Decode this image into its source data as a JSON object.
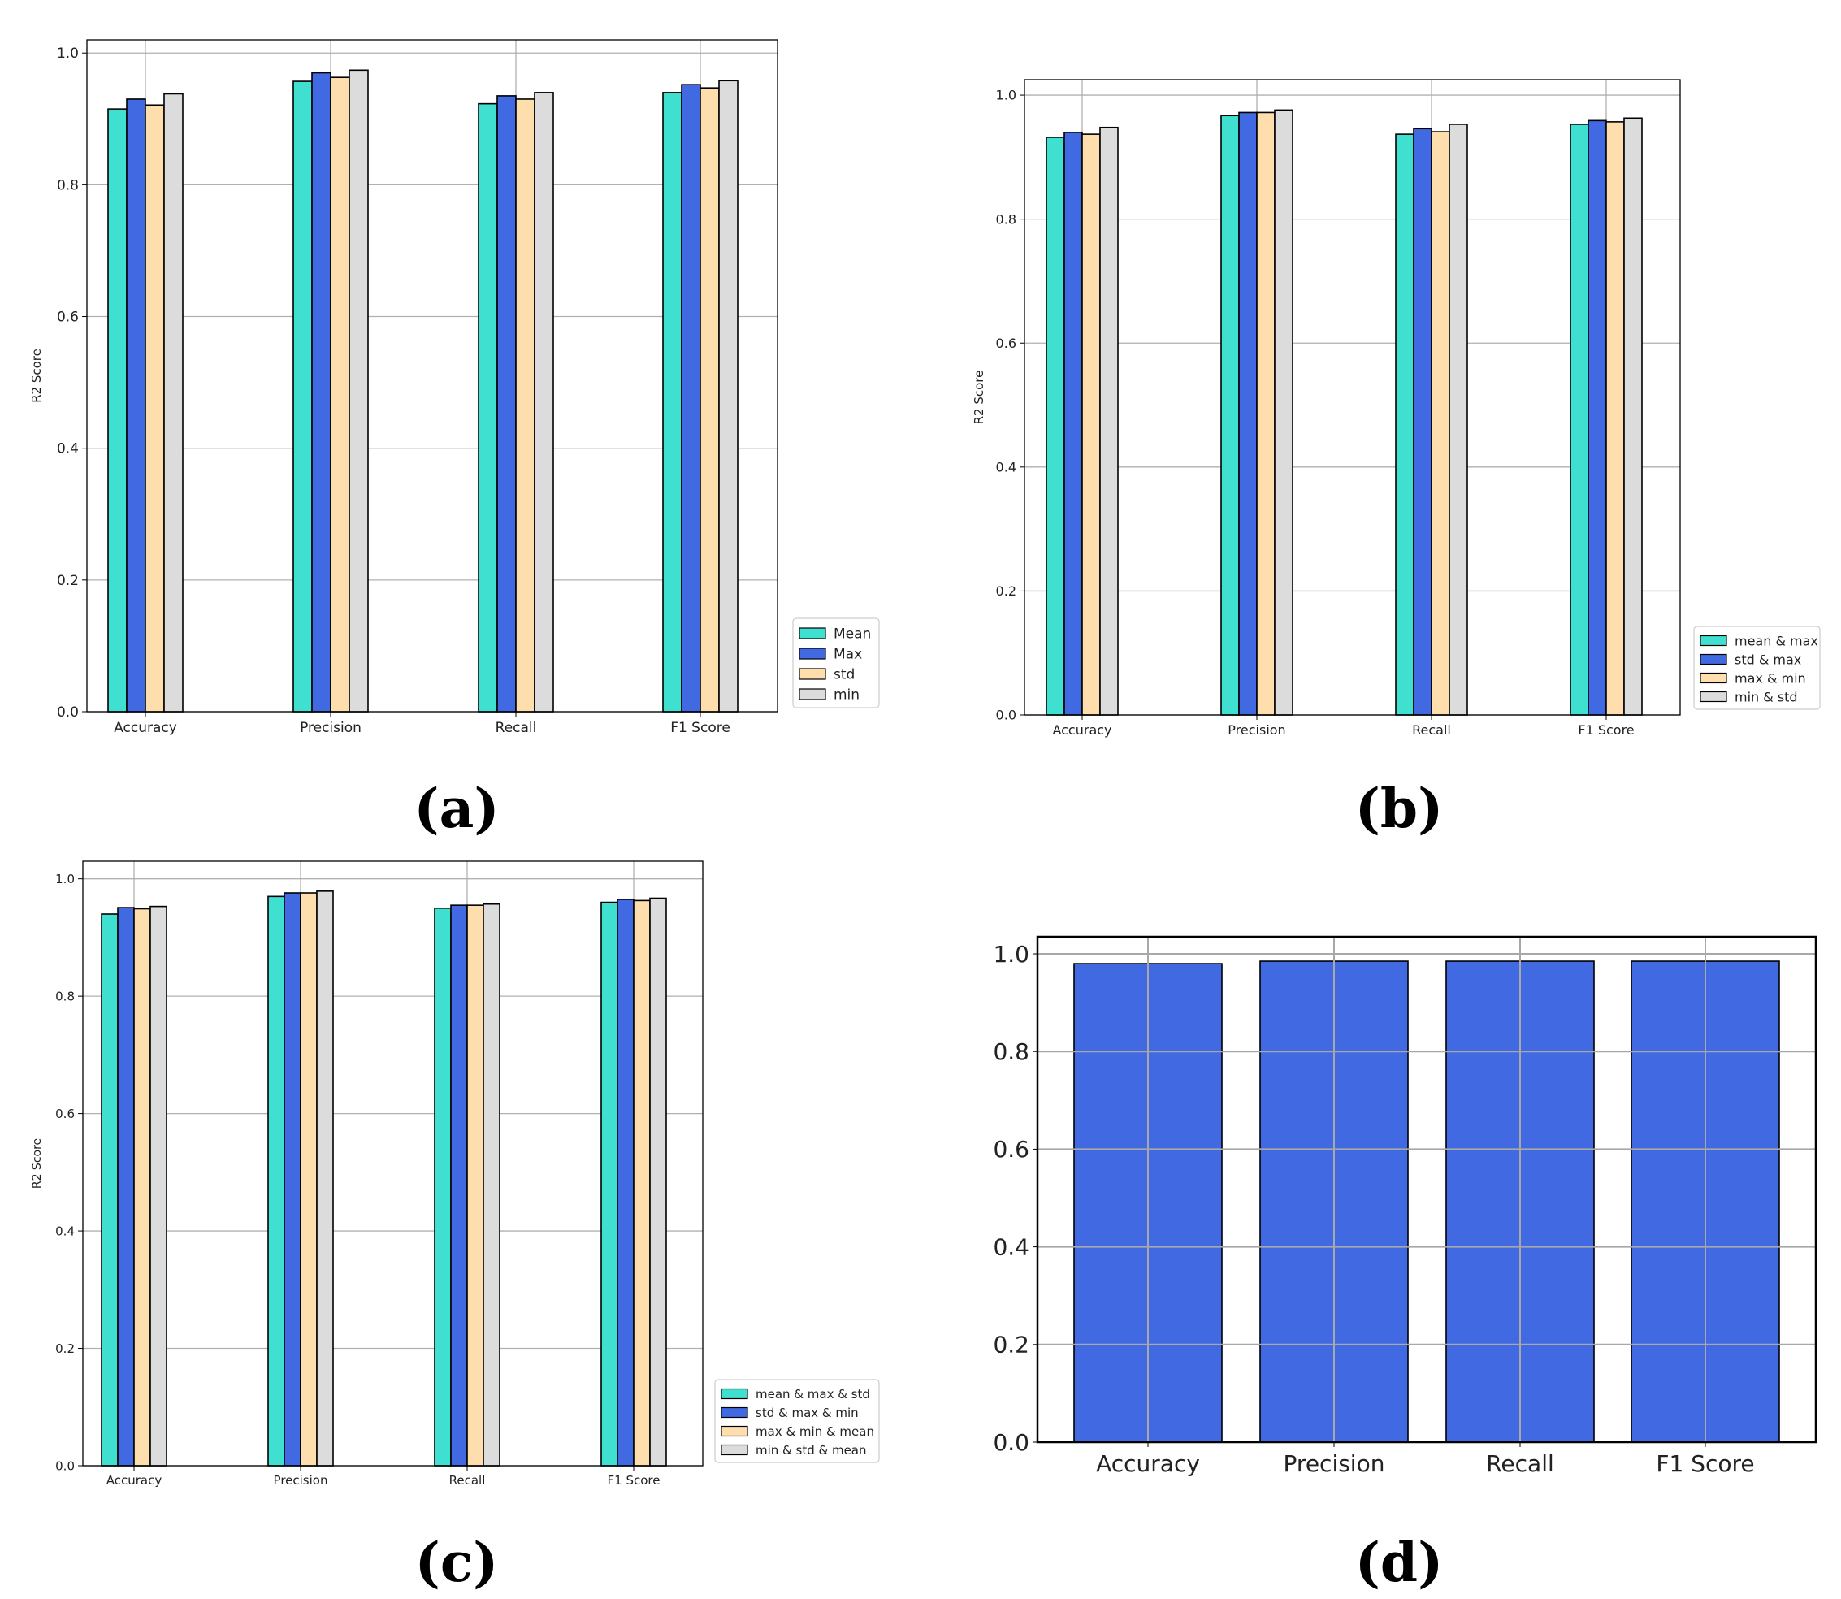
{
  "chart_data": [
    {
      "id": "a",
      "type": "bar",
      "caption": "(a)",
      "title": "",
      "xlabel": "",
      "ylabel": "R2 Score",
      "ylim": [
        0,
        1.02
      ],
      "yticks": [
        "0.0",
        "0.2",
        "0.4",
        "0.6",
        "0.8",
        "1.0"
      ],
      "grid": true,
      "legend_position": "bottom-right-outside",
      "categories": [
        "Accuracy",
        "Precision",
        "Recall",
        "F1 Score"
      ],
      "series": [
        {
          "name": "Mean",
          "color": "#40e0d0",
          "values": [
            0.915,
            0.957,
            0.923,
            0.94
          ]
        },
        {
          "name": "Max",
          "color": "#4169e1",
          "values": [
            0.93,
            0.97,
            0.935,
            0.952
          ]
        },
        {
          "name": "std",
          "color": "#ffdead",
          "values": [
            0.921,
            0.963,
            0.93,
            0.947
          ]
        },
        {
          "name": "min",
          "color": "#dcdcdc",
          "values": [
            0.938,
            0.974,
            0.94,
            0.958
          ]
        }
      ]
    },
    {
      "id": "b",
      "type": "bar",
      "caption": "(b)",
      "title": "",
      "xlabel": "",
      "ylabel": "R2 Score",
      "ylim": [
        0,
        1.025
      ],
      "yticks": [
        "0.0",
        "0.2",
        "0.4",
        "0.6",
        "0.8",
        "1.0"
      ],
      "grid": true,
      "legend_position": "bottom-right-outside",
      "categories": [
        "Accuracy",
        "Precision",
        "Recall",
        "F1 Score"
      ],
      "series": [
        {
          "name": "mean & max",
          "color": "#40e0d0",
          "values": [
            0.932,
            0.967,
            0.937,
            0.953
          ]
        },
        {
          "name": "std & max",
          "color": "#4169e1",
          "values": [
            0.94,
            0.972,
            0.946,
            0.959
          ]
        },
        {
          "name": "max & min",
          "color": "#ffdead",
          "values": [
            0.937,
            0.972,
            0.941,
            0.957
          ]
        },
        {
          "name": "min & std",
          "color": "#dcdcdc",
          "values": [
            0.948,
            0.976,
            0.953,
            0.963
          ]
        }
      ]
    },
    {
      "id": "c",
      "type": "bar",
      "caption": "(c)",
      "title": "",
      "xlabel": "",
      "ylabel": "R2 Score",
      "ylim": [
        0,
        1.03
      ],
      "yticks": [
        "0.0",
        "0.2",
        "0.4",
        "0.6",
        "0.8",
        "1.0"
      ],
      "grid": true,
      "legend_position": "bottom-right-outside",
      "categories": [
        "Accuracy",
        "Precision",
        "Recall",
        "F1 Score"
      ],
      "series": [
        {
          "name": "mean & max & std",
          "color": "#40e0d0",
          "values": [
            0.94,
            0.97,
            0.95,
            0.96
          ]
        },
        {
          "name": "std & max & min",
          "color": "#4169e1",
          "values": [
            0.951,
            0.976,
            0.955,
            0.965
          ]
        },
        {
          "name": "max & min & mean",
          "color": "#ffdead",
          "values": [
            0.949,
            0.976,
            0.955,
            0.963
          ]
        },
        {
          "name": "min & std & mean",
          "color": "#dcdcdc",
          "values": [
            0.953,
            0.979,
            0.957,
            0.967
          ]
        }
      ]
    },
    {
      "id": "d",
      "type": "bar",
      "caption": "(d)",
      "title": "",
      "xlabel": "",
      "ylabel": "",
      "ylim": [
        0,
        1.035
      ],
      "yticks": [
        "0.0",
        "0.2",
        "0.4",
        "0.6",
        "0.8",
        "1.0"
      ],
      "grid": true,
      "categories": [
        "Accuracy",
        "Precision",
        "Recall",
        "F1 Score"
      ],
      "series": [
        {
          "name": "",
          "color": "#4169e1",
          "values": [
            0.98,
            0.985,
            0.985,
            0.985
          ]
        }
      ]
    }
  ]
}
